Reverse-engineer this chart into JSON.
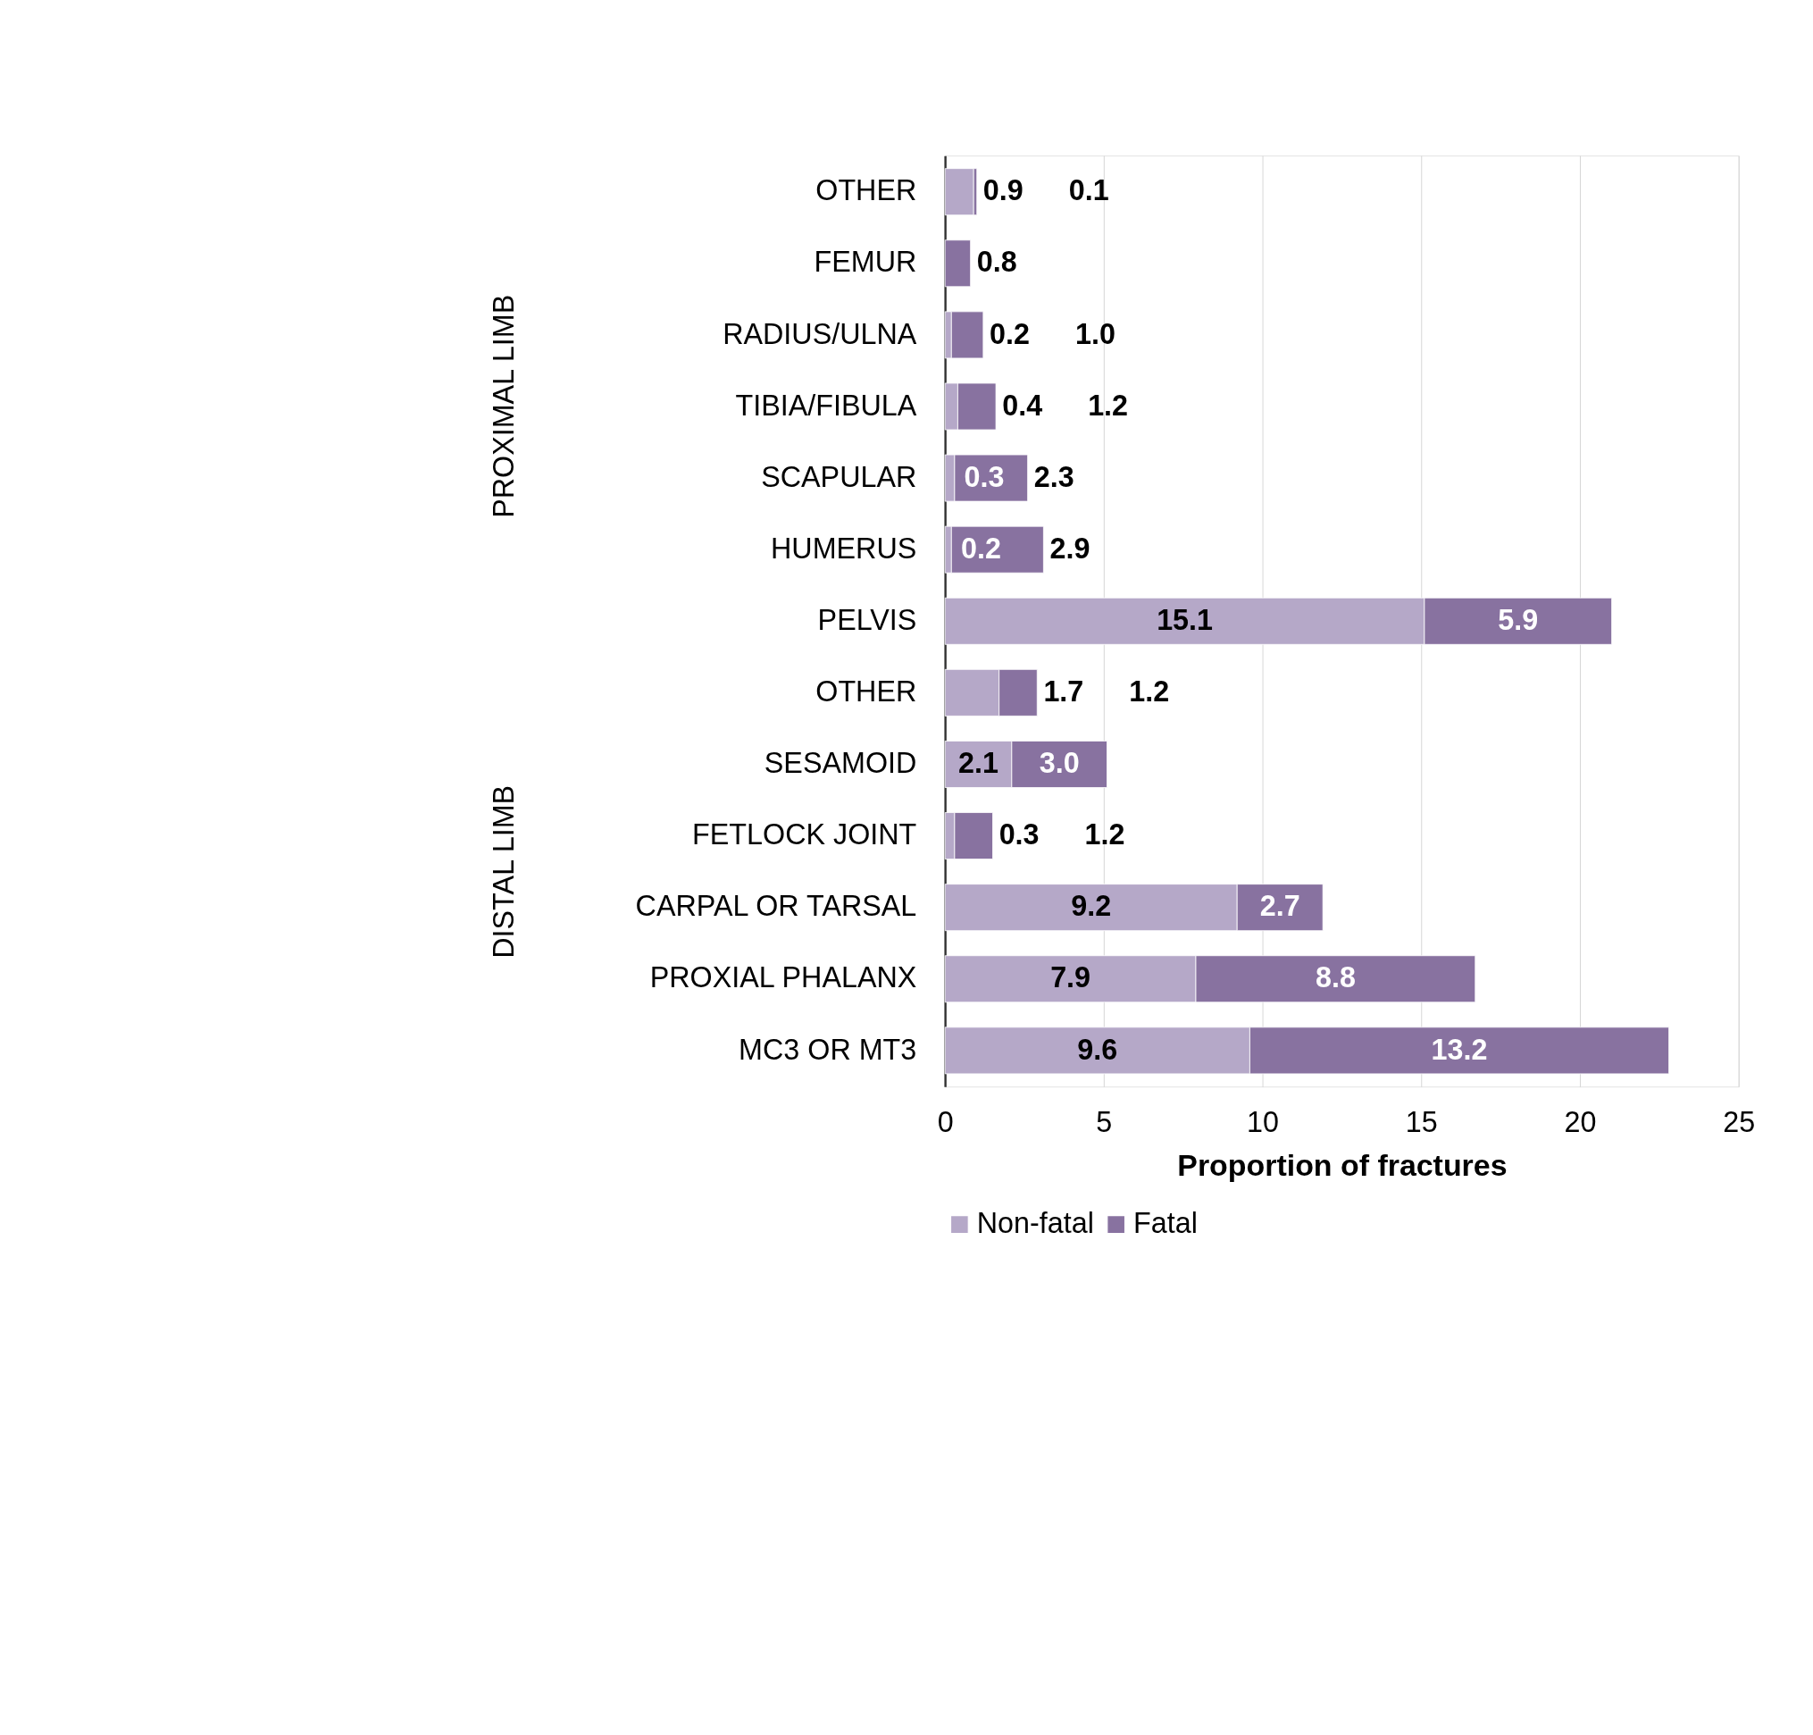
{
  "chart_data": {
    "type": "bar",
    "orientation": "horizontal",
    "stacked": true,
    "categories": [
      "OTHER",
      "FEMUR",
      "RADIUS/ULNA",
      "TIBIA/FIBULA",
      "SCAPULAR",
      "HUMERUS",
      "PELVIS",
      "OTHER",
      "SESAMOID",
      "FETLOCK JOINT",
      "CARPAL OR TARSAL",
      "PROXIAL PHALANX",
      "MC3 OR MT3"
    ],
    "series": [
      {
        "name": "Non-fatal",
        "color": "#b5a8c8",
        "values": [
          0.9,
          null,
          0.2,
          0.4,
          0.3,
          0.2,
          15.1,
          1.7,
          2.1,
          0.3,
          9.2,
          7.9,
          9.6
        ],
        "value_labels": [
          "0.9",
          null,
          "0.2",
          "0.4",
          "0.3",
          "0.2",
          "15.1",
          "1.7",
          "2.1",
          "0.3",
          "9.2",
          "7.9",
          "9.6"
        ]
      },
      {
        "name": "Fatal",
        "color": "#8872a0",
        "values": [
          0.1,
          0.8,
          1.0,
          1.2,
          2.3,
          2.9,
          5.9,
          1.2,
          3.0,
          1.2,
          2.7,
          8.8,
          13.2
        ],
        "value_labels": [
          "0.1",
          "0.8",
          "1.0",
          "1.2",
          "2.3",
          "2.9",
          "5.9",
          "1.2",
          "3.0",
          "1.2",
          "2.7",
          "8.8",
          "13.2"
        ]
      }
    ],
    "xlabel": "Proportion of fractures",
    "xlim": [
      0,
      25
    ],
    "xticks": [
      0,
      5,
      10,
      15,
      20,
      25
    ],
    "grid": "x",
    "legend": "bottom left",
    "annotations": [
      "PROXIMAL LIMB",
      "DISTAL LIMB"
    ]
  }
}
